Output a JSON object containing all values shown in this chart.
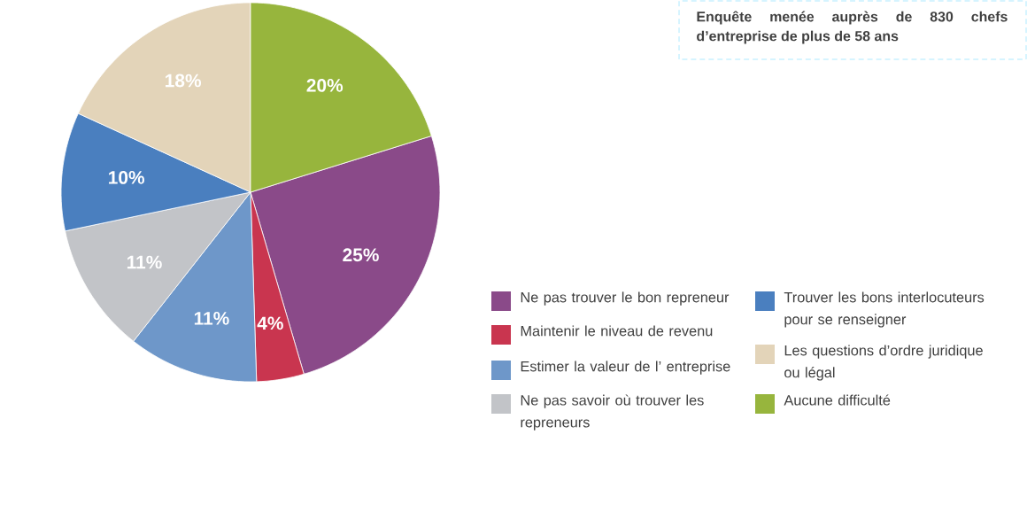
{
  "chart_data": {
    "type": "pie",
    "categories": [
      "Ne pas trouver le bon repreneur",
      "Maintenir le niveau de revenu",
      "Estimer la valeur de l’ entreprise",
      "Ne pas savoir où trouver les repreneurs",
      "Trouver les bons interlocuteurs pour se renseigner",
      "Les questions d’ordre juridique ou légal",
      "Aucune difficulté"
    ],
    "values": [
      25,
      4,
      11,
      11,
      10,
      18,
      20
    ],
    "value_labels": [
      "25%",
      "4%",
      "11%",
      "11%",
      "10%",
      "18%",
      "20%"
    ],
    "colors": [
      "#8a4a89",
      "#c9354f",
      "#6e97c9",
      "#c2c4c8",
      "#4a7fbf",
      "#e3d4b9",
      "#97b53d"
    ],
    "legend": "bottom right",
    "annotations": [
      "Enquête menée auprès de 830 chefs d’entreprise de plus de 58 ans"
    ]
  }
}
